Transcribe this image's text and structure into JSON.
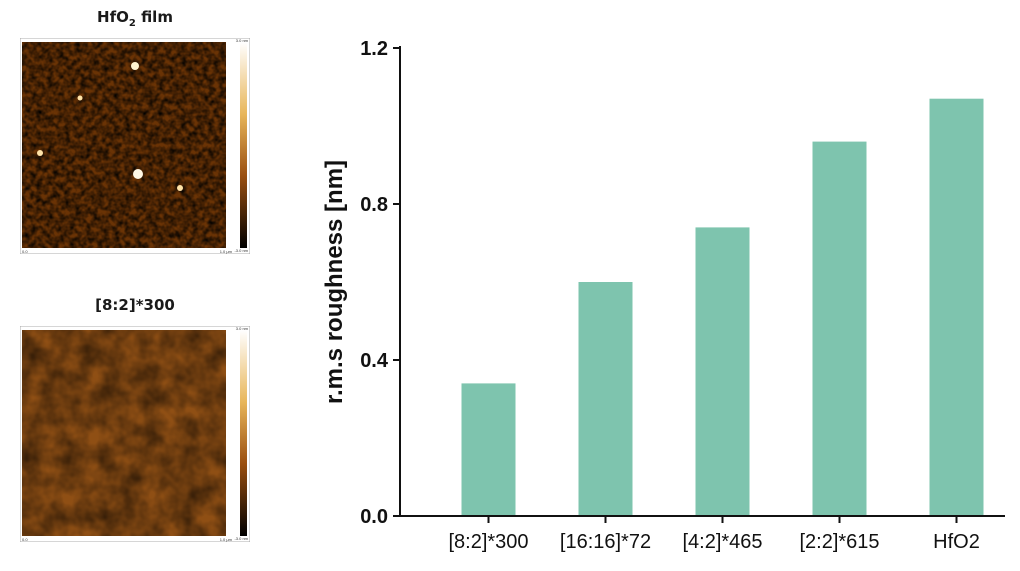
{
  "panels": [
    {
      "title": "HfO",
      "title_sub": "2",
      "title_rest": " film",
      "scale_max": "3.0 nm",
      "scale_min": "-3.0 nm",
      "corner_left": "0.0",
      "corner_right": "1.0 μm"
    },
    {
      "title": "[8:2]*300",
      "scale_max": "3.0 nm",
      "scale_min": "-3.0 nm",
      "corner_left": "0.0",
      "corner_right": "1.0 μm"
    }
  ],
  "chart_data": {
    "type": "bar",
    "categories": [
      "[8:2]*300",
      "[16:16]*72",
      "[4:2]*465",
      "[2:2]*615",
      "HfO2"
    ],
    "values": [
      0.34,
      0.6,
      0.74,
      0.96,
      1.07
    ],
    "xlabel": "",
    "ylabel": "r.m.s roughness [nm]",
    "ylim": [
      0.0,
      1.2
    ],
    "yticks": [
      "0.0",
      "0.4",
      "0.8",
      "1.2"
    ],
    "bar_color": "#7ec4ae",
    "grid": false
  }
}
